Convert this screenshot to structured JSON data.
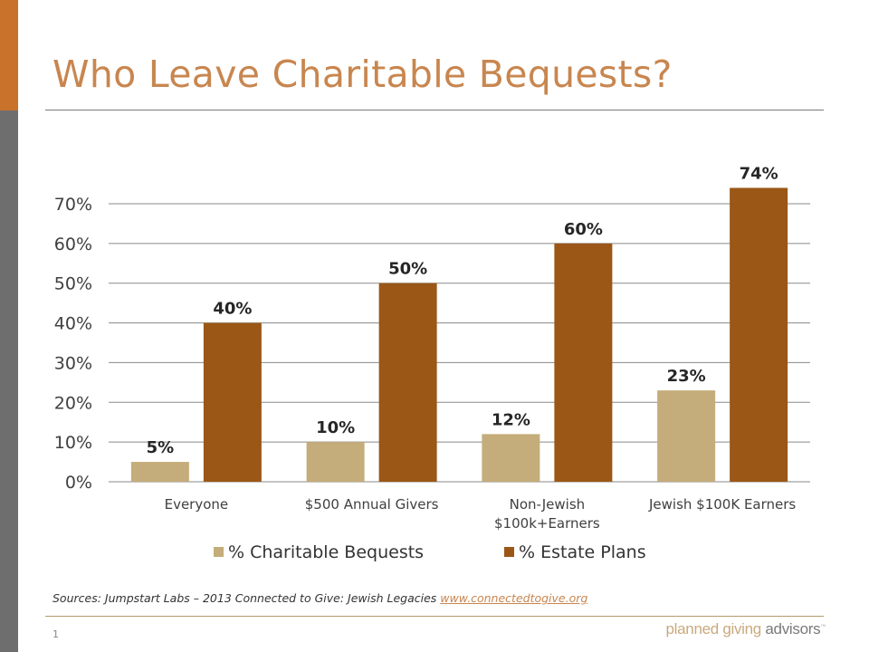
{
  "slide": {
    "title": "Who Leave Charitable Bequests?",
    "sources_text": "Sources: Jumpstart Labs – 2013 Connected to Give: Jewish Legacies ",
    "sources_link": "www.connectedtogive.org",
    "page_number": "1",
    "logo_part1": "planned giving",
    "logo_part2": " advisors",
    "logo_mark": "™"
  },
  "colors": {
    "accent_orange": "#c8722c",
    "side_gray": "#6e6e6e",
    "title_color": "#c8864f",
    "series_bequests": "#c4ad7a",
    "series_estate": "#9a5716"
  },
  "chart_data": {
    "type": "bar",
    "title": "",
    "xlabel": "",
    "ylabel": "",
    "ylim": [
      0,
      70
    ],
    "yticks": [
      0,
      10,
      20,
      30,
      40,
      50,
      60,
      70
    ],
    "ytick_labels": [
      "0%",
      "10%",
      "20%",
      "30%",
      "40%",
      "50%",
      "60%",
      "70%"
    ],
    "grid": true,
    "legend_position": "bottom",
    "categories": [
      "Everyone",
      "$500 Annual Givers",
      "Non-Jewish $100k+Earners",
      "Jewish $100K Earners"
    ],
    "category_lines": [
      [
        "Everyone"
      ],
      [
        "$500 Annual Givers"
      ],
      [
        "Non-Jewish",
        "$100k+Earners"
      ],
      [
        "Jewish $100K Earners"
      ]
    ],
    "series": [
      {
        "name": "% Charitable Bequests",
        "values": [
          5,
          10,
          12,
          23
        ],
        "labels": [
          "5%",
          "10%",
          "12%",
          "23%"
        ],
        "color": "#c4ad7a"
      },
      {
        "name": "% Estate Plans",
        "values": [
          40,
          50,
          60,
          74
        ],
        "labels": [
          "40%",
          "50%",
          "60%",
          "74%"
        ],
        "color": "#9a5716"
      }
    ]
  }
}
